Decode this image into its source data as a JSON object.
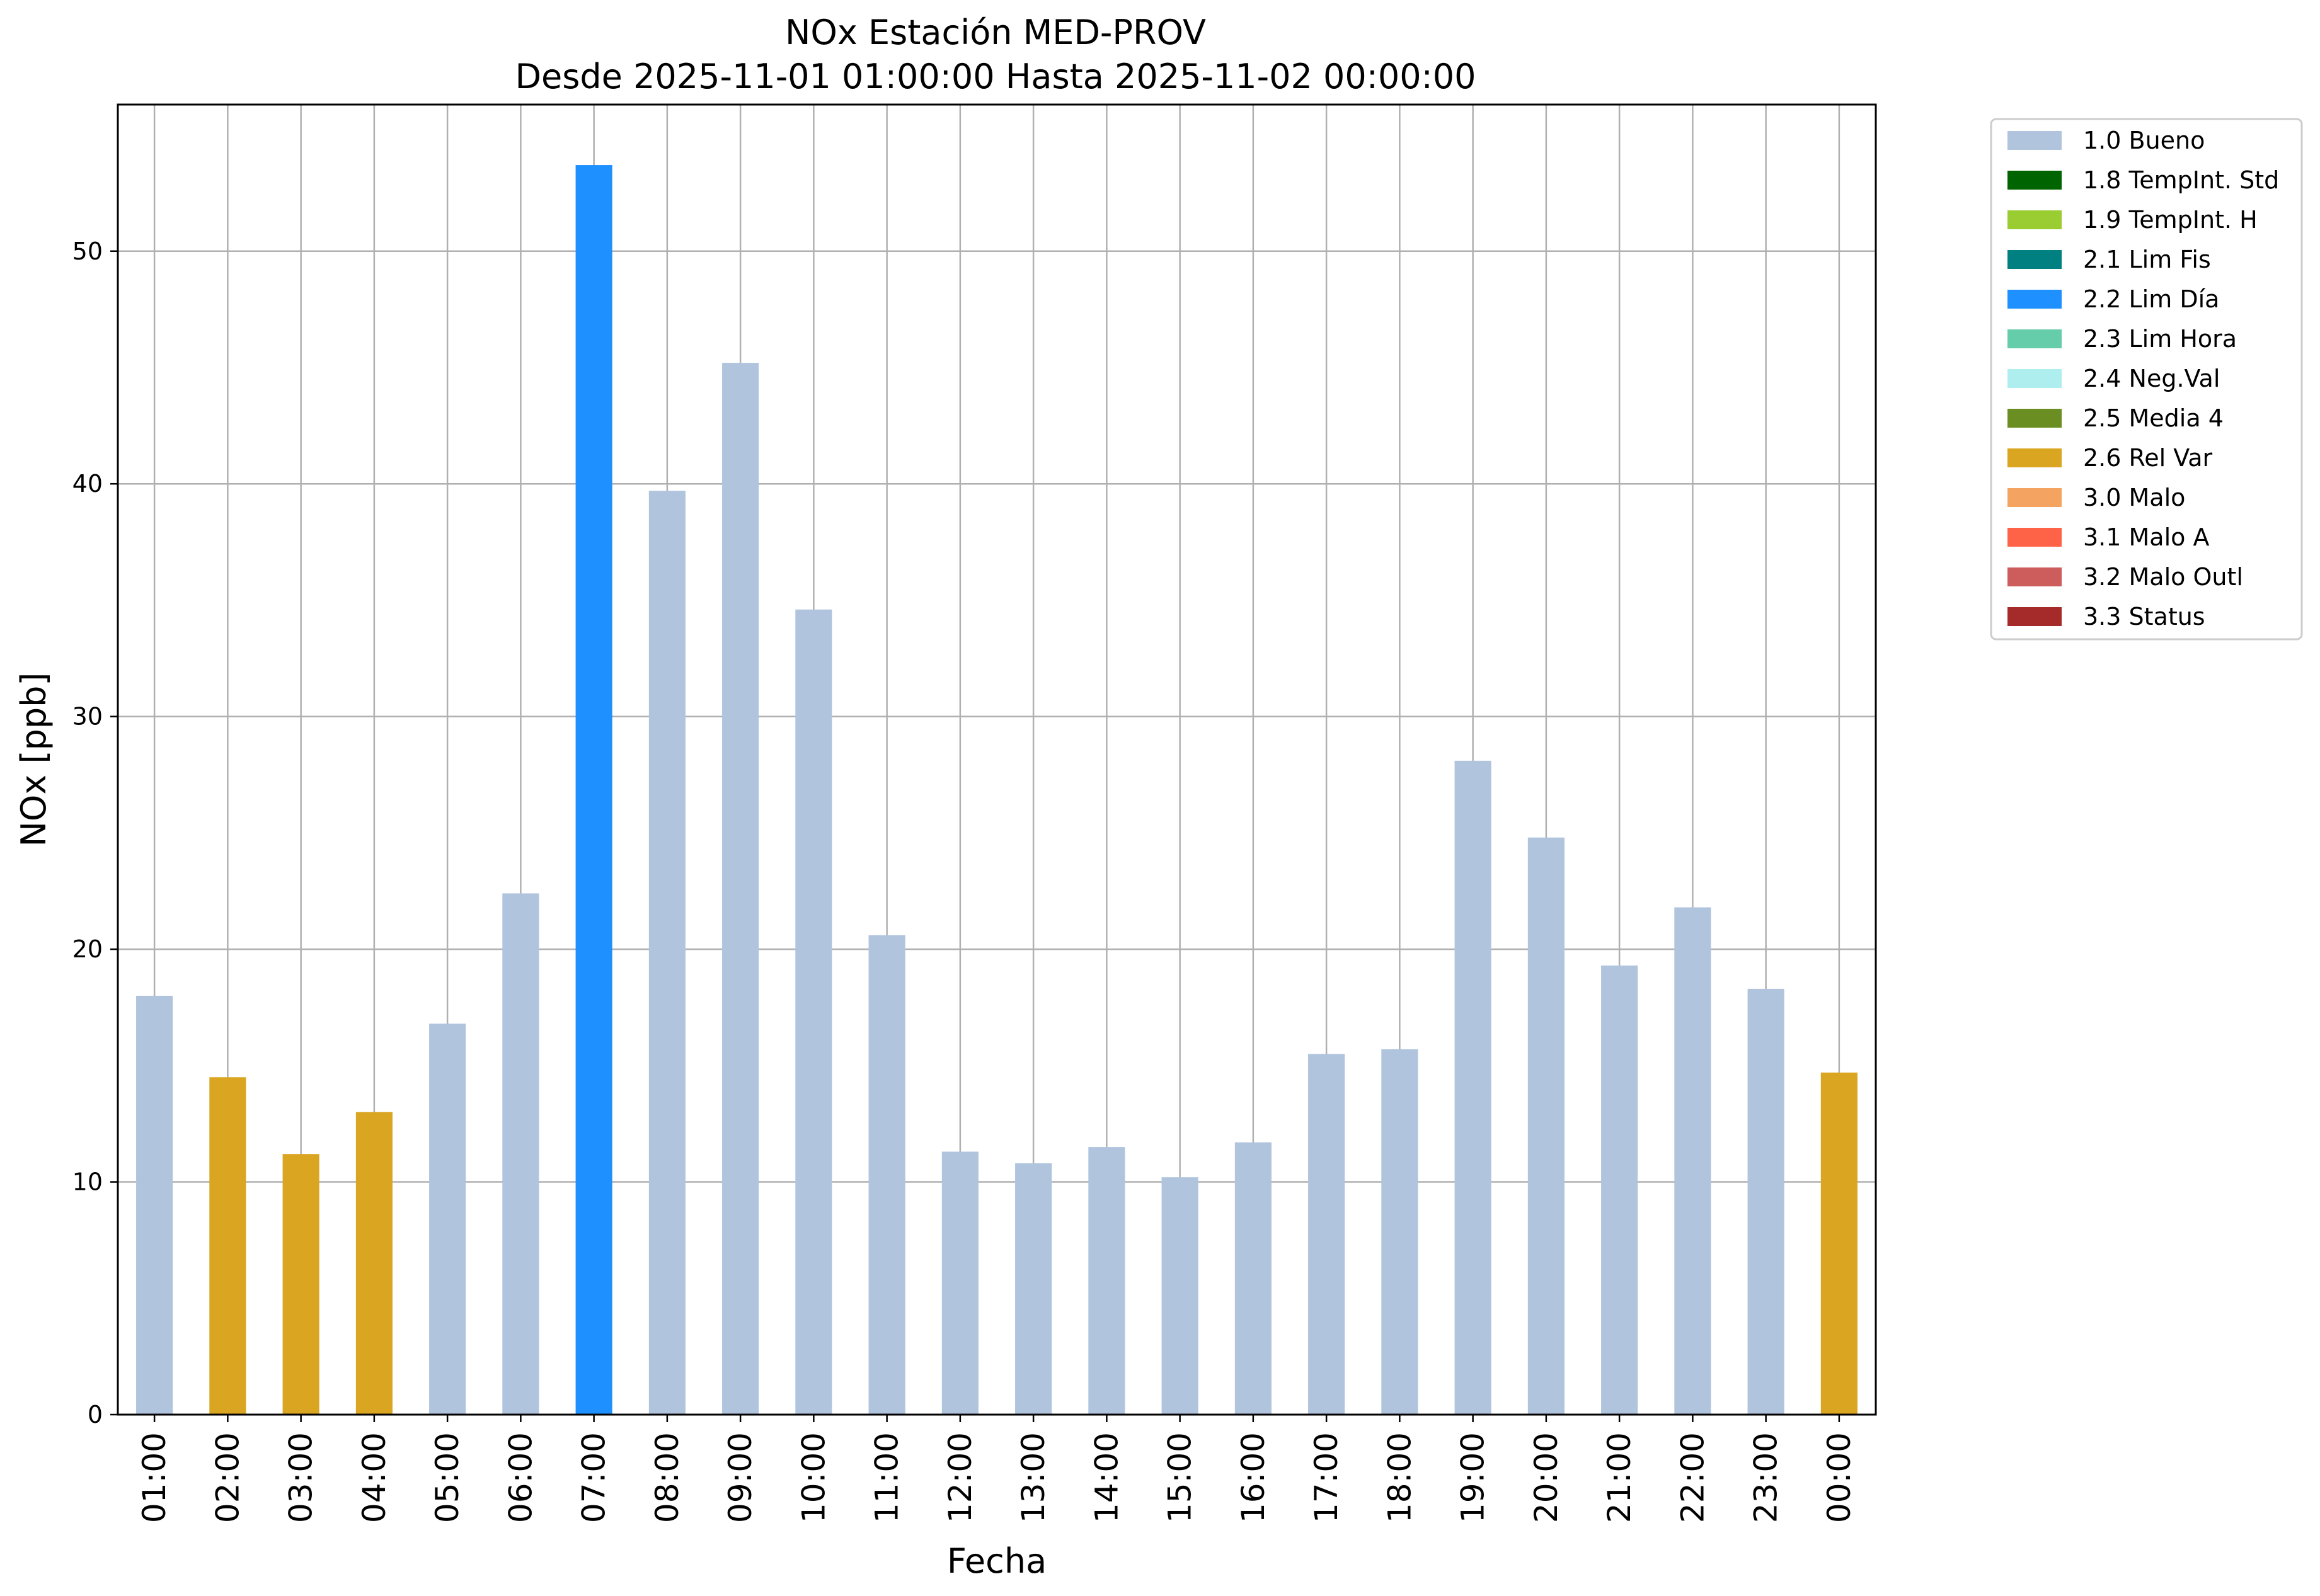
{
  "chart_data": {
    "type": "bar",
    "title": "NOx Estación MED-PROV",
    "subtitle": "Desde 2025-11-01 01:00:00 Hasta 2025-11-02 00:00:00",
    "xlabel": "Fecha",
    "ylabel": "NOx [ppb]",
    "ylim": [
      0,
      56.3
    ],
    "yticks": [
      0,
      10,
      20,
      30,
      40,
      50
    ],
    "grid": true,
    "legend_position": "outside-top-right",
    "categories": [
      "01:00",
      "02:00",
      "03:00",
      "04:00",
      "05:00",
      "06:00",
      "07:00",
      "08:00",
      "09:00",
      "10:00",
      "11:00",
      "12:00",
      "13:00",
      "14:00",
      "15:00",
      "16:00",
      "17:00",
      "18:00",
      "19:00",
      "20:00",
      "21:00",
      "22:00",
      "23:00",
      "00:00"
    ],
    "values": [
      18.0,
      14.5,
      11.2,
      13.0,
      16.8,
      22.4,
      53.7,
      39.7,
      45.2,
      34.6,
      20.6,
      11.3,
      10.8,
      11.5,
      10.2,
      11.7,
      15.5,
      15.7,
      28.1,
      24.8,
      19.3,
      21.8,
      18.3,
      14.7
    ],
    "flags": [
      "1.0 Bueno",
      "2.6 Rel Var",
      "2.6 Rel Var",
      "2.6 Rel Var",
      "1.0 Bueno",
      "1.0 Bueno",
      "2.2 Lim Día",
      "1.0 Bueno",
      "1.0 Bueno",
      "1.0 Bueno",
      "1.0 Bueno",
      "1.0 Bueno",
      "1.0 Bueno",
      "1.0 Bueno",
      "1.0 Bueno",
      "1.0 Bueno",
      "1.0 Bueno",
      "1.0 Bueno",
      "1.0 Bueno",
      "1.0 Bueno",
      "1.0 Bueno",
      "1.0 Bueno",
      "1.0 Bueno",
      "2.6 Rel Var"
    ],
    "legend": [
      {
        "label": "1.0 Bueno",
        "color": "#b0c4de"
      },
      {
        "label": "1.8 TempInt. Std",
        "color": "#006400"
      },
      {
        "label": "1.9 TempInt. H",
        "color": "#9acd32"
      },
      {
        "label": "2.1 Lim Fis",
        "color": "#008080"
      },
      {
        "label": "2.2 Lim Día",
        "color": "#1e90ff"
      },
      {
        "label": "2.3 Lim Hora",
        "color": "#66cdaa"
      },
      {
        "label": "2.4 Neg.Val",
        "color": "#afeeee"
      },
      {
        "label": "2.5 Media 4",
        "color": "#6b8e23"
      },
      {
        "label": "2.6 Rel Var",
        "color": "#daa520"
      },
      {
        "label": "3.0 Malo",
        "color": "#f4a460"
      },
      {
        "label": "3.1 Malo A",
        "color": "#ff6347"
      },
      {
        "label": "3.2 Malo Outl",
        "color": "#cd5c5c"
      },
      {
        "label": "3.3 Status",
        "color": "#a52a2a"
      }
    ]
  }
}
